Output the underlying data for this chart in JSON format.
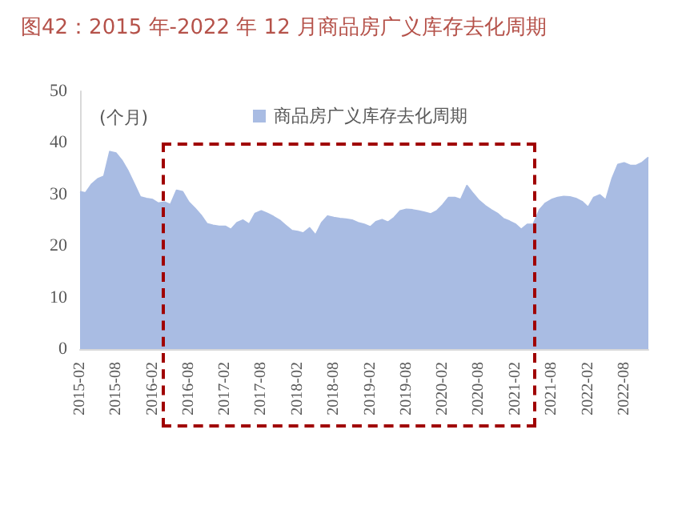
{
  "chart_data": {
    "type": "area",
    "title": "图42：2015 年-2022 年 12 月商品房广义库存去化周期",
    "ylabel": "(个月)",
    "x": [
      "2015-02",
      "2015-03",
      "2015-04",
      "2015-05",
      "2015-06",
      "2015-07",
      "2015-08",
      "2015-09",
      "2015-10",
      "2015-11",
      "2015-12",
      "2016-01",
      "2016-02",
      "2016-03",
      "2016-04",
      "2016-05",
      "2016-06",
      "2016-07",
      "2016-08",
      "2016-09",
      "2016-10",
      "2016-11",
      "2016-12",
      "2017-01",
      "2017-02",
      "2017-03",
      "2017-04",
      "2017-05",
      "2017-06",
      "2017-07",
      "2017-08",
      "2017-09",
      "2017-10",
      "2017-11",
      "2017-12",
      "2018-01",
      "2018-02",
      "2018-03",
      "2018-04",
      "2018-05",
      "2018-06",
      "2018-07",
      "2018-08",
      "2018-09",
      "2018-10",
      "2018-11",
      "2018-12",
      "2019-01",
      "2019-02",
      "2019-03",
      "2019-04",
      "2019-05",
      "2019-06",
      "2019-07",
      "2019-08",
      "2019-09",
      "2019-10",
      "2019-11",
      "2019-12",
      "2020-01",
      "2020-02",
      "2020-03",
      "2020-04",
      "2020-05",
      "2020-06",
      "2020-07",
      "2020-08",
      "2020-09",
      "2020-10",
      "2020-11",
      "2020-12",
      "2021-01",
      "2021-02",
      "2021-03",
      "2021-04",
      "2021-05",
      "2021-06",
      "2021-07",
      "2021-08",
      "2021-09",
      "2021-10",
      "2021-11",
      "2021-12",
      "2022-01",
      "2022-02",
      "2022-03",
      "2022-04",
      "2022-05",
      "2022-06",
      "2022-07",
      "2022-08",
      "2022-09",
      "2022-10",
      "2022-11",
      "2022-12"
    ],
    "series": [
      {
        "name": "商品房广义库存去化周期",
        "color": "#a9bce3",
        "values": [
          30.5,
          30.3,
          32,
          33,
          33.5,
          38.3,
          38,
          36.5,
          34.5,
          32,
          29.5,
          29.2,
          29,
          28.3,
          28.5,
          28,
          30.8,
          30.5,
          28.5,
          27.3,
          26,
          24.3,
          24,
          23.8,
          23.8,
          23.2,
          24.5,
          25,
          24.2,
          26.3,
          26.8,
          26.3,
          25.7,
          25,
          24,
          23,
          22.8,
          22.5,
          23.5,
          22.1,
          24.5,
          25.8,
          25.5,
          25.3,
          25.2,
          25,
          24.5,
          24.2,
          23.7,
          24.7,
          25.1,
          24.6,
          25.5,
          26.8,
          27.1,
          27,
          26.8,
          26.5,
          26.2,
          26.8,
          28,
          29.4,
          29.4,
          29,
          31.7,
          30.2,
          28.8,
          27.8,
          27,
          26.3,
          25.3,
          24.8,
          24.2,
          23.2,
          24.2,
          24.2,
          27,
          28.3,
          29,
          29.4,
          29.6,
          29.5,
          29.2,
          28.6,
          27.5,
          29.4,
          29.9,
          28.9,
          33,
          35.8,
          36.1,
          35.6,
          35.6,
          36.2,
          37.2
        ]
      }
    ],
    "xlim": [
      "2015-02",
      "2022-12"
    ],
    "xticks": [
      "2015-02",
      "2015-08",
      "2016-02",
      "2016-08",
      "2017-02",
      "2017-08",
      "2018-02",
      "2018-08",
      "2019-02",
      "2019-08",
      "2020-02",
      "2020-08",
      "2021-02",
      "2021-08",
      "2022-02",
      "2022-08"
    ],
    "ylim": [
      0,
      50
    ],
    "yticks": [
      0,
      10,
      20,
      30,
      40,
      50
    ],
    "grid": false,
    "legend": "top right"
  }
}
